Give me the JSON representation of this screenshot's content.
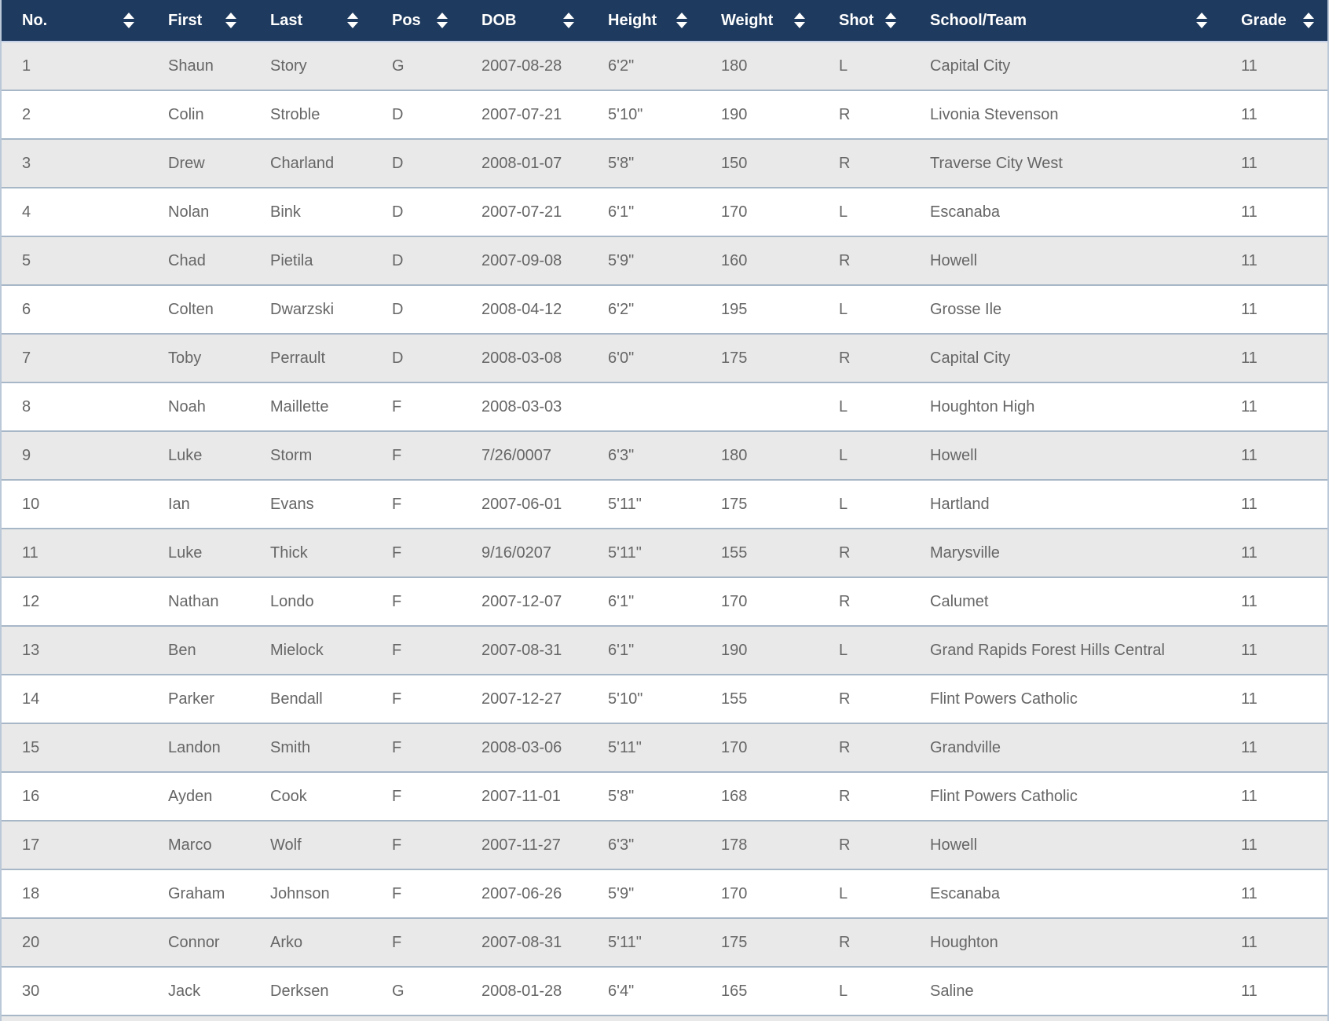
{
  "table": {
    "columns": [
      {
        "key": "no",
        "label": "No.",
        "sortable": true
      },
      {
        "key": "first",
        "label": "First",
        "sortable": true
      },
      {
        "key": "last",
        "label": "Last",
        "sortable": true
      },
      {
        "key": "pos",
        "label": "Pos",
        "sortable": true
      },
      {
        "key": "dob",
        "label": "DOB",
        "sortable": true
      },
      {
        "key": "height",
        "label": "Height",
        "sortable": true
      },
      {
        "key": "weight",
        "label": "Weight",
        "sortable": true
      },
      {
        "key": "shot",
        "label": "Shot",
        "sortable": true
      },
      {
        "key": "school-team",
        "label": "School/Team",
        "sortable": true
      },
      {
        "key": "grade",
        "label": "Grade",
        "sortable": true
      }
    ],
    "rows": [
      [
        "1",
        "Shaun",
        "Story",
        "G",
        "2007-08-28",
        "6'2\"",
        "180",
        "L",
        "Capital City",
        "11"
      ],
      [
        "2",
        "Colin",
        "Stroble",
        "D",
        "2007-07-21",
        "5'10\"",
        "190",
        "R",
        "Livonia Stevenson",
        "11"
      ],
      [
        "3",
        "Drew",
        "Charland",
        "D",
        "2008-01-07",
        "5'8\"",
        "150",
        "R",
        "Traverse City West",
        "11"
      ],
      [
        "4",
        "Nolan",
        "Bink",
        "D",
        "2007-07-21",
        "6'1\"",
        "170",
        "L",
        "Escanaba",
        "11"
      ],
      [
        "5",
        "Chad",
        "Pietila",
        "D",
        "2007-09-08",
        "5'9\"",
        "160",
        "R",
        "Howell",
        "11"
      ],
      [
        "6",
        "Colten",
        "Dwarzski",
        "D",
        "2008-04-12",
        "6'2\"",
        "195",
        "L",
        "Grosse Ile",
        "11"
      ],
      [
        "7",
        "Toby",
        "Perrault",
        "D",
        "2008-03-08",
        "6'0\"",
        "175",
        "R",
        "Capital City",
        "11"
      ],
      [
        "8",
        "Noah",
        "Maillette",
        "F",
        "2008-03-03",
        "",
        "",
        "L",
        "Houghton High",
        "11"
      ],
      [
        "9",
        "Luke",
        "Storm",
        "F",
        "7/26/0007",
        "6'3\"",
        "180",
        "L",
        "Howell",
        "11"
      ],
      [
        "10",
        "Ian",
        "Evans",
        "F",
        "2007-06-01",
        "5'11\"",
        "175",
        "L",
        "Hartland",
        "11"
      ],
      [
        "11",
        "Luke",
        "Thick",
        "F",
        "9/16/0207",
        "5'11\"",
        "155",
        "R",
        "Marysville",
        "11"
      ],
      [
        "12",
        "Nathan",
        "Londo",
        "F",
        "2007-12-07",
        "6'1\"",
        "170",
        "R",
        "Calumet",
        "11"
      ],
      [
        "13",
        "Ben",
        "Mielock",
        "F",
        "2007-08-31",
        "6'1\"",
        "190",
        "L",
        "Grand Rapids Forest Hills Central",
        "11"
      ],
      [
        "14",
        "Parker",
        "Bendall",
        "F",
        "2007-12-27",
        "5'10\"",
        "155",
        "R",
        "Flint Powers Catholic",
        "11"
      ],
      [
        "15",
        "Landon",
        "Smith",
        "F",
        "2008-03-06",
        "5'11\"",
        "170",
        "R",
        "Grandville",
        "11"
      ],
      [
        "16",
        "Ayden",
        "Cook",
        "F",
        "2007-11-01",
        "5'8\"",
        "168",
        "R",
        "Flint Powers Catholic",
        "11"
      ],
      [
        "17",
        "Marco",
        "Wolf",
        "F",
        "2007-11-27",
        "6'3\"",
        "178",
        "R",
        "Howell",
        "11"
      ],
      [
        "18",
        "Graham",
        "Johnson",
        "F",
        "2007-06-26",
        "5'9\"",
        "170",
        "L",
        "Escanaba",
        "11"
      ],
      [
        "20",
        "Connor",
        "Arko",
        "F",
        "2007-08-31",
        "5'11\"",
        "175",
        "R",
        "Houghton",
        "11"
      ],
      [
        "30",
        "Jack",
        "Derksen",
        "G",
        "2008-01-28",
        "6'4\"",
        "165",
        "L",
        "Saline",
        "11"
      ]
    ]
  },
  "colors": {
    "header_bg": "#1e3a5e",
    "header_text": "#ffffff",
    "header_border": "#c4d1e6",
    "row_stripe": "#e9e9e9",
    "row_white": "#ffffff",
    "row_border": "#a7b7c7",
    "side_border": "#bac8d8",
    "cell_text": "#666666"
  },
  "icons": {
    "sort": "sort-both-icon (stacked up/down triangles)"
  }
}
